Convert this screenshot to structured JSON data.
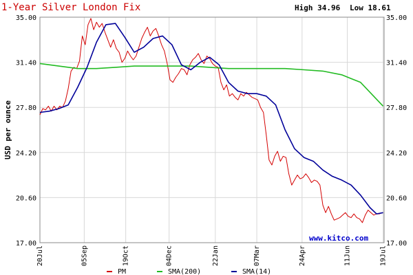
{
  "chart_data": {
    "type": "line",
    "title": "1-Year Silver London Fix",
    "high_label": "High 34.96",
    "low_label": "Low 18.61",
    "ylabel": "USD per ounce",
    "watermark": "www.kitco.com",
    "ylim": [
      17.0,
      35.0
    ],
    "yticks": [
      "35.00",
      "31.40",
      "27.80",
      "24.20",
      "20.60",
      "17.00"
    ],
    "ytick_values": [
      35.0,
      31.4,
      27.8,
      24.2,
      20.6,
      17.0
    ],
    "xlim": [
      0,
      365
    ],
    "xticks": [
      "20Jul",
      "05Sep",
      "19Oct",
      "04Dec",
      "22Jan",
      "07Mar",
      "24Apr",
      "11Jun",
      "19Jul"
    ],
    "xtick_days": [
      0,
      47,
      91,
      137,
      186,
      230,
      278,
      326,
      364
    ],
    "grid": true,
    "legend_position": "bottom",
    "colors": {
      "pm": "#d40000",
      "sma200": "#22bb22",
      "sma14": "#000099",
      "grid": "#d8d8d8",
      "axis": "#888888"
    },
    "series": [
      {
        "name": "PM",
        "key": "pm",
        "x": [
          0,
          3,
          6,
          9,
          12,
          15,
          18,
          21,
          24,
          27,
          30,
          33,
          36,
          39,
          42,
          45,
          48,
          51,
          54,
          57,
          60,
          63,
          66,
          69,
          72,
          75,
          78,
          81,
          84,
          87,
          90,
          93,
          96,
          99,
          102,
          105,
          108,
          111,
          114,
          117,
          120,
          123,
          126,
          129,
          132,
          135,
          138,
          141,
          144,
          147,
          150,
          153,
          156,
          159,
          162,
          165,
          168,
          171,
          174,
          177,
          180,
          183,
          186,
          189,
          192,
          195,
          198,
          201,
          204,
          207,
          210,
          213,
          216,
          219,
          222,
          225,
          228,
          231,
          234,
          237,
          240,
          243,
          246,
          249,
          252,
          255,
          258,
          261,
          264,
          267,
          270,
          273,
          276,
          279,
          282,
          285,
          288,
          291,
          294,
          297,
          300,
          303,
          306,
          309,
          312,
          315,
          318,
          321,
          324,
          327,
          330,
          333,
          336,
          339,
          342,
          345,
          348,
          351,
          354,
          357,
          360,
          363
        ],
        "y": [
          27.2,
          27.7,
          27.6,
          27.9,
          27.5,
          27.9,
          27.6,
          27.9,
          27.8,
          28.3,
          29.3,
          30.7,
          31.0,
          30.9,
          31.5,
          33.5,
          32.8,
          34.4,
          34.9,
          34.0,
          34.6,
          34.2,
          34.5,
          33.8,
          33.2,
          32.6,
          33.2,
          32.5,
          32.2,
          31.4,
          31.7,
          32.3,
          31.9,
          31.6,
          31.9,
          32.6,
          33.3,
          33.8,
          34.2,
          33.5,
          33.9,
          34.1,
          33.5,
          32.8,
          32.3,
          31.3,
          30.0,
          29.8,
          30.2,
          30.5,
          30.9,
          30.8,
          30.4,
          31.2,
          31.6,
          31.8,
          32.1,
          31.6,
          31.3,
          31.9,
          31.7,
          31.3,
          31.1,
          31.0,
          29.8,
          29.2,
          29.6,
          28.7,
          28.9,
          28.6,
          28.4,
          28.9,
          28.7,
          29.0,
          28.8,
          28.6,
          28.5,
          28.4,
          27.8,
          27.4,
          25.6,
          23.6,
          23.2,
          23.9,
          24.3,
          23.5,
          23.9,
          23.8,
          22.5,
          21.6,
          22.0,
          22.4,
          22.1,
          22.2,
          22.5,
          22.2,
          21.8,
          22.0,
          21.9,
          21.6,
          20.0,
          19.4,
          19.9,
          19.3,
          18.8,
          18.9,
          19.0,
          19.2,
          19.4,
          19.1,
          19.0,
          19.3,
          19.0,
          18.9,
          18.6,
          19.2,
          19.6,
          19.4,
          19.2,
          19.3,
          19.3,
          19.4
        ]
      },
      {
        "name": "SMA(200)",
        "key": "sma200",
        "x": [
          0,
          20,
          40,
          60,
          80,
          100,
          120,
          140,
          160,
          180,
          200,
          220,
          240,
          260,
          280,
          300,
          320,
          340,
          364
        ],
        "y": [
          31.3,
          31.1,
          30.9,
          30.9,
          31.0,
          31.1,
          31.1,
          31.1,
          31.1,
          31.0,
          30.9,
          30.9,
          30.9,
          30.9,
          30.8,
          30.7,
          30.4,
          29.8,
          27.9
        ]
      },
      {
        "name": "SMA(14)",
        "key": "sma14",
        "x": [
          0,
          10,
          20,
          30,
          40,
          50,
          60,
          70,
          80,
          90,
          100,
          110,
          120,
          130,
          140,
          150,
          160,
          170,
          180,
          190,
          200,
          210,
          220,
          230,
          240,
          250,
          260,
          270,
          280,
          290,
          300,
          310,
          320,
          330,
          340,
          350,
          357,
          364
        ],
        "y": [
          27.4,
          27.5,
          27.7,
          28.0,
          29.4,
          31.0,
          33.0,
          34.4,
          34.5,
          33.4,
          32.2,
          32.6,
          33.3,
          33.5,
          32.8,
          31.2,
          30.8,
          31.4,
          31.8,
          31.2,
          29.8,
          29.1,
          28.9,
          28.9,
          28.7,
          28.0,
          26.0,
          24.5,
          23.8,
          23.5,
          22.8,
          22.3,
          22.0,
          21.6,
          20.8,
          19.8,
          19.3,
          19.4
        ]
      }
    ]
  }
}
